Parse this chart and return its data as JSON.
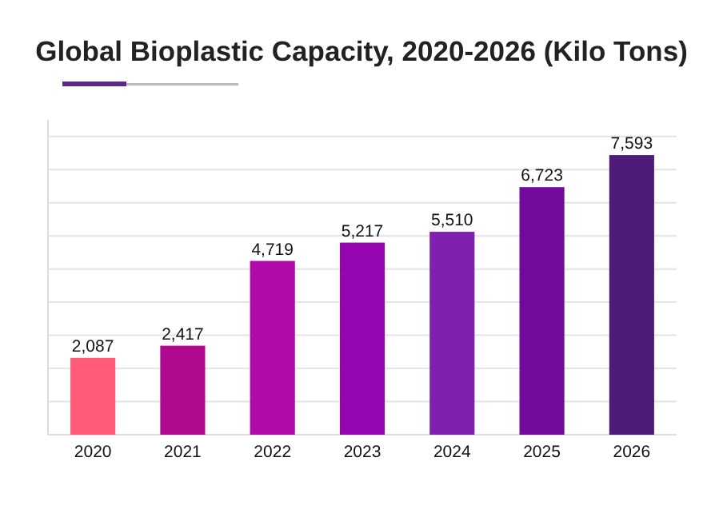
{
  "chart_data": {
    "type": "bar",
    "title": "Global Bioplastic Capacity, 2020-2026 (Kilo Tons)",
    "categories": [
      "2020",
      "2021",
      "2022",
      "2023",
      "2024",
      "2025",
      "2026"
    ],
    "values": [
      2087,
      2417,
      4719,
      5217,
      5510,
      6723,
      7593
    ],
    "colors": [
      "#ff5a78",
      "#b0088f",
      "#b00aa8",
      "#9505b0",
      "#8020b0",
      "#720a9e",
      "#4e1c78"
    ],
    "value_labels": [
      "2,087",
      "2,417",
      "4,719",
      "5,217",
      "5,510",
      "6,723",
      "7,593"
    ],
    "ylim": [
      0,
      8550
    ],
    "yticks": [
      {
        "value": 0,
        "label": null
      },
      {
        "value": 900,
        "label": null
      },
      {
        "value": 1800,
        "label": null
      },
      {
        "value": 2700,
        "label": null
      },
      {
        "value": 3600,
        "label": null
      },
      {
        "value": 4500,
        "label": null
      },
      {
        "value": 5400,
        "label": null
      },
      {
        "value": 6300,
        "label": null
      },
      {
        "value": 7200,
        "label": null
      },
      {
        "value": 8100,
        "label": null
      }
    ],
    "grid": "y",
    "tick_labels": "x"
  }
}
